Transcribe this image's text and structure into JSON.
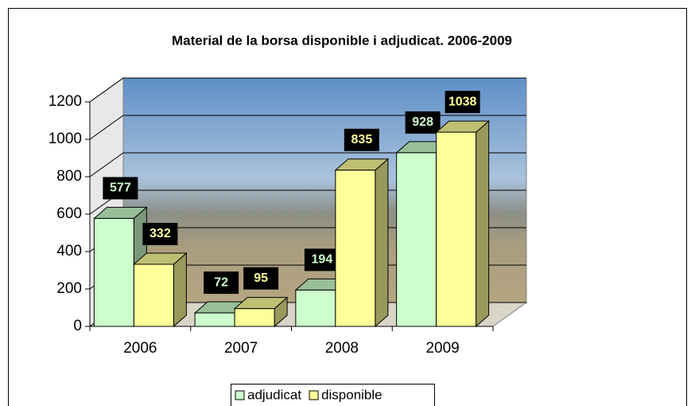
{
  "chart_data": {
    "type": "bar3d",
    "title": "Material de la borsa disponible i adjudicat. 2006-2009",
    "categories": [
      "2006",
      "2007",
      "2008",
      "2009"
    ],
    "series": [
      {
        "name": "adjudicat",
        "color": "#ccffcc",
        "values": [
          577,
          72,
          194,
          928
        ]
      },
      {
        "name": "disponible",
        "color": "#ffff99",
        "values": [
          332,
          95,
          835,
          1038
        ]
      }
    ],
    "ylim": [
      0,
      1200
    ],
    "yticks": [
      0,
      200,
      400,
      600,
      800,
      1000,
      1200
    ],
    "grid": true
  }
}
